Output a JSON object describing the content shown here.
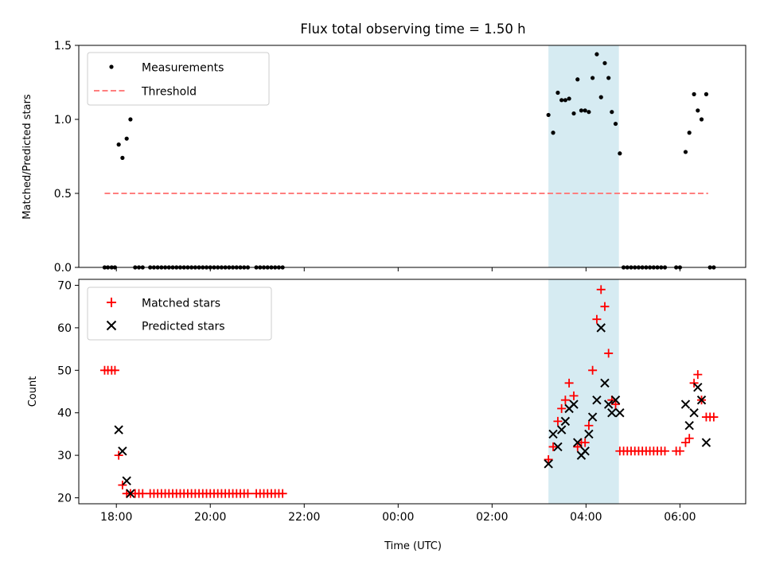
{
  "title": "Flux total observing time = 1.50 h",
  "colors": {
    "measurement": "#000000",
    "threshold": "#ff7f7f",
    "matched": "#ff0000",
    "predicted": "#000000",
    "band": "#add8e6"
  },
  "chart_data": [
    {
      "type": "scatter",
      "ylabel": "Matched/Predicted stars",
      "xlim": [
        -0.8,
        13.4
      ],
      "ylim": [
        0,
        1.5
      ],
      "yticks": [
        0,
        0.5,
        1.0,
        1.5
      ],
      "ytick_labels": [
        "0.0",
        "0.5",
        "1.0",
        "1.5"
      ],
      "legend": {
        "location": "top-left",
        "entries": [
          "Measurements",
          "Threshold"
        ]
      },
      "threshold": {
        "name": "Threshold",
        "y": 0.5,
        "x_start": -0.25,
        "x_end": 12.6
      },
      "highlight_band": {
        "x_start": 9.2,
        "x_end": 10.7
      },
      "series": [
        {
          "name": "Measurements",
          "marker": "dot",
          "points": [
            [
              -0.25,
              0
            ],
            [
              -0.18,
              0
            ],
            [
              -0.1,
              0
            ],
            [
              -0.03,
              0
            ],
            [
              0.05,
              0.83
            ],
            [
              0.13,
              0.74
            ],
            [
              0.22,
              0.87
            ],
            [
              0.3,
              1.0
            ],
            [
              0.4,
              0
            ],
            [
              0.48,
              0
            ],
            [
              0.56,
              0
            ],
            [
              0.72,
              0
            ],
            [
              0.8,
              0
            ],
            [
              0.88,
              0
            ],
            [
              0.96,
              0
            ],
            [
              1.04,
              0
            ],
            [
              1.12,
              0
            ],
            [
              1.2,
              0
            ],
            [
              1.28,
              0
            ],
            [
              1.36,
              0
            ],
            [
              1.44,
              0
            ],
            [
              1.52,
              0
            ],
            [
              1.6,
              0
            ],
            [
              1.68,
              0
            ],
            [
              1.76,
              0
            ],
            [
              1.84,
              0
            ],
            [
              1.92,
              0
            ],
            [
              2.0,
              0
            ],
            [
              2.08,
              0
            ],
            [
              2.16,
              0
            ],
            [
              2.24,
              0
            ],
            [
              2.32,
              0
            ],
            [
              2.4,
              0
            ],
            [
              2.48,
              0
            ],
            [
              2.56,
              0
            ],
            [
              2.64,
              0
            ],
            [
              2.72,
              0
            ],
            [
              2.8,
              0
            ],
            [
              2.98,
              0
            ],
            [
              3.06,
              0
            ],
            [
              3.14,
              0
            ],
            [
              3.22,
              0
            ],
            [
              3.3,
              0
            ],
            [
              3.38,
              0
            ],
            [
              3.46,
              0
            ],
            [
              3.54,
              0
            ],
            [
              9.2,
              1.03
            ],
            [
              9.3,
              0.91
            ],
            [
              9.4,
              1.18
            ],
            [
              9.48,
              1.13
            ],
            [
              9.56,
              1.13
            ],
            [
              9.64,
              1.14
            ],
            [
              9.74,
              1.04
            ],
            [
              9.82,
              1.27
            ],
            [
              9.9,
              1.06
            ],
            [
              9.98,
              1.06
            ],
            [
              10.06,
              1.05
            ],
            [
              10.14,
              1.28
            ],
            [
              10.23,
              1.44
            ],
            [
              10.32,
              1.15
            ],
            [
              10.4,
              1.38
            ],
            [
              10.48,
              1.28
            ],
            [
              10.55,
              1.05
            ],
            [
              10.63,
              0.97
            ],
            [
              10.72,
              0.77
            ],
            [
              10.8,
              0
            ],
            [
              10.88,
              0
            ],
            [
              10.96,
              0
            ],
            [
              11.04,
              0
            ],
            [
              11.12,
              0
            ],
            [
              11.2,
              0
            ],
            [
              11.28,
              0
            ],
            [
              11.36,
              0
            ],
            [
              11.44,
              0
            ],
            [
              11.52,
              0
            ],
            [
              11.6,
              0
            ],
            [
              11.68,
              0
            ],
            [
              11.92,
              0
            ],
            [
              12.0,
              0
            ],
            [
              12.12,
              0.78
            ],
            [
              12.2,
              0.91
            ],
            [
              12.3,
              1.17
            ],
            [
              12.38,
              1.06
            ],
            [
              12.46,
              1.0
            ],
            [
              12.56,
              1.17
            ],
            [
              12.64,
              0
            ],
            [
              12.72,
              0
            ]
          ]
        }
      ]
    },
    {
      "type": "scatter",
      "xlabel": "Time (UTC)",
      "ylabel": "Count",
      "xlim": [
        -0.8,
        13.4
      ],
      "ylim": [
        18.6,
        71.4
      ],
      "yticks": [
        20,
        30,
        40,
        50,
        60,
        70
      ],
      "xticks": [
        0,
        2,
        4,
        6,
        8,
        10,
        12
      ],
      "xtick_labels": [
        "18:00",
        "20:00",
        "22:00",
        "00:00",
        "02:00",
        "04:00",
        "06:00"
      ],
      "legend": {
        "location": "top-left",
        "entries": [
          "Matched stars",
          "Predicted stars"
        ]
      },
      "highlight_band": {
        "x_start": 9.2,
        "x_end": 10.7
      },
      "series": [
        {
          "name": "Matched stars",
          "marker": "plus",
          "points": [
            [
              -0.25,
              50
            ],
            [
              -0.18,
              50
            ],
            [
              -0.1,
              50
            ],
            [
              -0.03,
              50
            ],
            [
              0.05,
              30
            ],
            [
              0.13,
              23
            ],
            [
              0.22,
              21
            ],
            [
              0.3,
              21
            ],
            [
              0.4,
              21
            ],
            [
              0.48,
              21
            ],
            [
              0.56,
              21
            ],
            [
              0.72,
              21
            ],
            [
              0.8,
              21
            ],
            [
              0.88,
              21
            ],
            [
              0.96,
              21
            ],
            [
              1.04,
              21
            ],
            [
              1.12,
              21
            ],
            [
              1.2,
              21
            ],
            [
              1.28,
              21
            ],
            [
              1.36,
              21
            ],
            [
              1.44,
              21
            ],
            [
              1.52,
              21
            ],
            [
              1.6,
              21
            ],
            [
              1.68,
              21
            ],
            [
              1.76,
              21
            ],
            [
              1.84,
              21
            ],
            [
              1.92,
              21
            ],
            [
              2.0,
              21
            ],
            [
              2.08,
              21
            ],
            [
              2.16,
              21
            ],
            [
              2.24,
              21
            ],
            [
              2.32,
              21
            ],
            [
              2.4,
              21
            ],
            [
              2.48,
              21
            ],
            [
              2.56,
              21
            ],
            [
              2.64,
              21
            ],
            [
              2.72,
              21
            ],
            [
              2.8,
              21
            ],
            [
              2.98,
              21
            ],
            [
              3.06,
              21
            ],
            [
              3.14,
              21
            ],
            [
              3.22,
              21
            ],
            [
              3.3,
              21
            ],
            [
              3.38,
              21
            ],
            [
              3.46,
              21
            ],
            [
              3.54,
              21
            ],
            [
              9.2,
              29
            ],
            [
              9.3,
              32
            ],
            [
              9.4,
              38
            ],
            [
              9.48,
              41
            ],
            [
              9.56,
              43
            ],
            [
              9.64,
              47
            ],
            [
              9.74,
              44
            ],
            [
              9.82,
              32
            ],
            [
              9.9,
              33
            ],
            [
              9.98,
              33
            ],
            [
              10.06,
              37
            ],
            [
              10.14,
              50
            ],
            [
              10.23,
              62
            ],
            [
              10.32,
              69
            ],
            [
              10.4,
              65
            ],
            [
              10.48,
              54
            ],
            [
              10.55,
              43
            ],
            [
              10.63,
              42
            ],
            [
              10.72,
              31
            ],
            [
              10.8,
              31
            ],
            [
              10.88,
              31
            ],
            [
              10.96,
              31
            ],
            [
              11.04,
              31
            ],
            [
              11.12,
              31
            ],
            [
              11.2,
              31
            ],
            [
              11.28,
              31
            ],
            [
              11.36,
              31
            ],
            [
              11.44,
              31
            ],
            [
              11.52,
              31
            ],
            [
              11.6,
              31
            ],
            [
              11.68,
              31
            ],
            [
              11.92,
              31
            ],
            [
              12.0,
              31
            ],
            [
              12.12,
              33
            ],
            [
              12.2,
              34
            ],
            [
              12.3,
              47
            ],
            [
              12.38,
              49
            ],
            [
              12.46,
              43
            ],
            [
              12.56,
              39
            ],
            [
              12.64,
              39
            ],
            [
              12.72,
              39
            ]
          ]
        },
        {
          "name": "Predicted stars",
          "marker": "x",
          "points": [
            [
              0.05,
              36
            ],
            [
              0.13,
              31
            ],
            [
              0.22,
              24
            ],
            [
              0.3,
              21
            ],
            [
              9.2,
              28
            ],
            [
              9.3,
              35
            ],
            [
              9.4,
              32
            ],
            [
              9.48,
              36
            ],
            [
              9.56,
              38
            ],
            [
              9.64,
              41
            ],
            [
              9.74,
              42
            ],
            [
              9.82,
              33
            ],
            [
              9.9,
              30
            ],
            [
              9.98,
              31
            ],
            [
              10.06,
              35
            ],
            [
              10.14,
              39
            ],
            [
              10.23,
              43
            ],
            [
              10.32,
              60
            ],
            [
              10.4,
              47
            ],
            [
              10.48,
              42
            ],
            [
              10.55,
              40
            ],
            [
              10.63,
              43
            ],
            [
              10.72,
              40
            ],
            [
              12.12,
              42
            ],
            [
              12.2,
              37
            ],
            [
              12.3,
              40
            ],
            [
              12.38,
              46
            ],
            [
              12.46,
              43
            ],
            [
              12.56,
              33
            ]
          ]
        }
      ]
    }
  ]
}
